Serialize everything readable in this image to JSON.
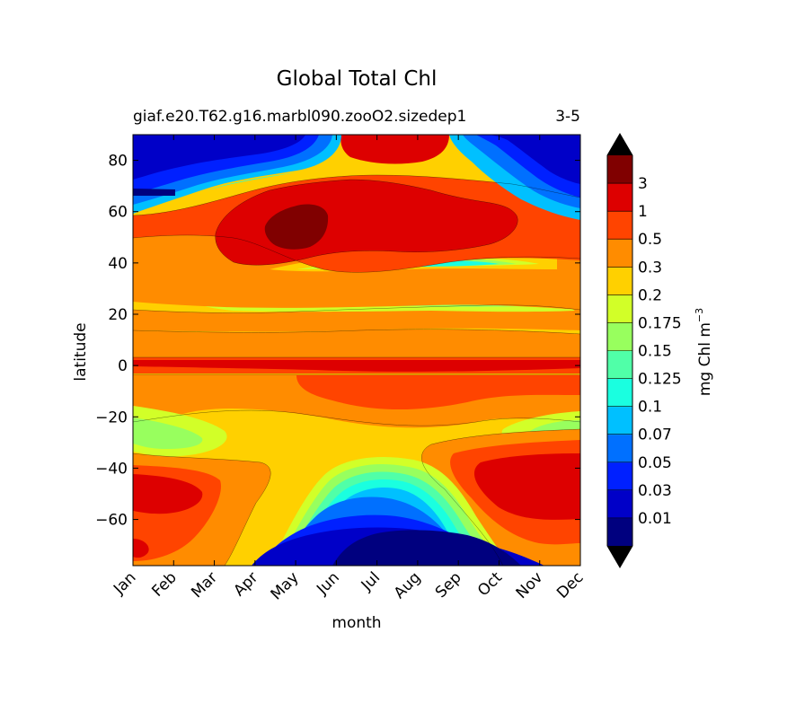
{
  "chart_data": {
    "type": "heatmap",
    "title": "Global Total Chl",
    "subtitle": "giaf.e20.T62.g16.marbl090.zooO2.sizedep1",
    "season": "3-5",
    "xlabel": "month",
    "ylabel": "latitude",
    "x_categories": [
      "Jan",
      "Feb",
      "Mar",
      "Apr",
      "May",
      "Jun",
      "Jul",
      "Aug",
      "Sep",
      "Oct",
      "Nov",
      "Dec"
    ],
    "y_ticks": [
      80,
      60,
      40,
      20,
      0,
      -20,
      -40,
      -60
    ],
    "y_tick_labels": [
      "80",
      "60",
      "40",
      "20",
      "0",
      "−20",
      "−40",
      "−60"
    ],
    "ylim": [
      -78,
      90
    ],
    "colorbar": {
      "label_main": "mg Chl m",
      "label_sup": "−3",
      "levels": [
        0.01,
        0.03,
        0.05,
        0.07,
        0.1,
        0.125,
        0.15,
        0.175,
        0.2,
        0.3,
        0.5,
        1,
        3
      ],
      "level_labels": [
        "0.01",
        "0.03",
        "0.05",
        "0.07",
        "0.1",
        "0.125",
        "0.15",
        "0.175",
        "0.2",
        "0.3",
        "0.5",
        "1",
        "3"
      ],
      "colors": [
        "#00007f",
        "#0000c8",
        "#0020ff",
        "#0070ff",
        "#00c0ff",
        "#1affe0",
        "#50ffa8",
        "#98ff5e",
        "#d2ff28",
        "#ffd000",
        "#ff8c00",
        "#ff4400",
        "#dd0000",
        "#800000"
      ],
      "under_color": "#00007f",
      "over_color": "#800000",
      "extend": "both"
    },
    "grid": false,
    "legend": "colorbar-right"
  }
}
